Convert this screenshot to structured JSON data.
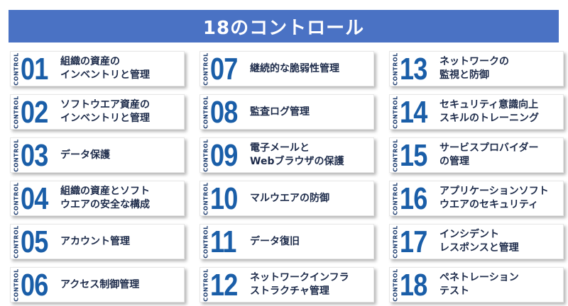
{
  "header": {
    "title": "18のコントロール"
  },
  "control_label": "CONTROL",
  "colors": {
    "banner": "#4a72c4",
    "number": "#1a5ea8",
    "text": "#1d2b4a"
  },
  "controls": [
    {
      "number": "01",
      "lines": [
        "組織の資産の",
        "インベントリと管理"
      ]
    },
    {
      "number": "02",
      "lines": [
        "ソフトウエア資産の",
        "インベントリと管理"
      ]
    },
    {
      "number": "03",
      "lines": [
        "データ保護"
      ]
    },
    {
      "number": "04",
      "lines": [
        "組織の資産とソフト",
        "ウエアの安全な構成"
      ]
    },
    {
      "number": "05",
      "lines": [
        "アカウント管理"
      ]
    },
    {
      "number": "06",
      "lines": [
        "アクセス制御管理"
      ]
    },
    {
      "number": "07",
      "lines": [
        "継続的な脆弱性管理"
      ]
    },
    {
      "number": "08",
      "lines": [
        "監査ログ管理"
      ]
    },
    {
      "number": "09",
      "lines": [
        "電子メールと",
        "Webブラウザの保護"
      ]
    },
    {
      "number": "10",
      "lines": [
        "マルウエアの防御"
      ]
    },
    {
      "number": "11",
      "lines": [
        "データ復旧"
      ]
    },
    {
      "number": "12",
      "lines": [
        "ネットワークインフラ",
        "ストラクチャ管理"
      ]
    },
    {
      "number": "13",
      "lines": [
        "ネットワークの",
        "監視と防御"
      ]
    },
    {
      "number": "14",
      "lines": [
        "セキュリティ意識向上",
        "スキルのトレーニング"
      ]
    },
    {
      "number": "15",
      "lines": [
        "サービスプロバイダー",
        "の管理"
      ]
    },
    {
      "number": "16",
      "lines": [
        "アプリケーションソフト",
        "ウエアのセキュリティ"
      ]
    },
    {
      "number": "17",
      "lines": [
        "インシデント",
        "レスポンスと管理"
      ]
    },
    {
      "number": "18",
      "lines": [
        "ペネトレーション",
        "テスト"
      ]
    }
  ]
}
